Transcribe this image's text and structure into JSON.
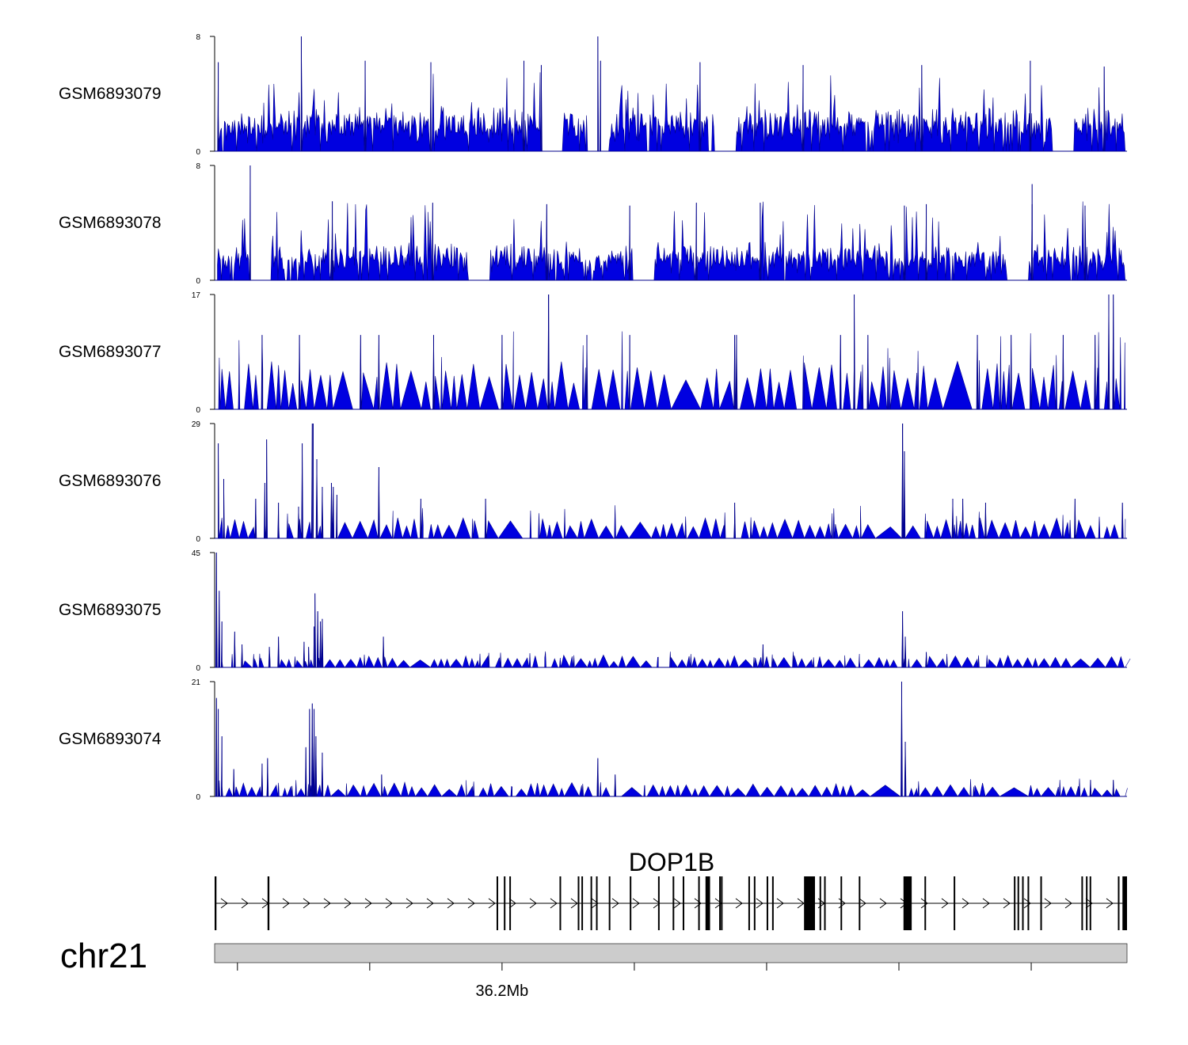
{
  "chart_data": {
    "type": "area",
    "title": "",
    "colors": {
      "signal": "#0000e0",
      "signal_edge": "#00008a",
      "ideogram": "#cccccc",
      "text": "#000000"
    },
    "tracks": [
      {
        "name": "GSM6893079",
        "ymax": 8,
        "ymin": 0,
        "ytick_top": "8",
        "ytick_bottom": "0",
        "baseline": 1.5,
        "noise": 1.2,
        "peak_rate": 0.045,
        "peak_height": 5,
        "seed": 11,
        "peaks": [
          [
            0.004,
            6.2
          ],
          [
            0.095,
            8.0
          ],
          [
            0.165,
            6.3
          ],
          [
            0.237,
            6.2
          ],
          [
            0.339,
            6.3
          ],
          [
            0.358,
            6.0
          ],
          [
            0.42,
            8.0
          ],
          [
            0.423,
            6.3
          ],
          [
            0.532,
            6.2
          ],
          [
            0.645,
            6.0
          ],
          [
            0.775,
            6.0
          ],
          [
            0.894,
            6.3
          ],
          [
            0.975,
            5.9
          ]
        ],
        "valleys": [
          0.37,
          0.42,
          0.56,
          0.93
        ]
      },
      {
        "name": "GSM6893078",
        "ymax": 8,
        "ymin": 0,
        "ytick_top": "8",
        "ytick_bottom": "0",
        "baseline": 1.2,
        "noise": 1.2,
        "peak_rate": 0.045,
        "peak_height": 5,
        "seed": 23,
        "peaks": [
          [
            0.039,
            8.0
          ],
          [
            0.129,
            5.5
          ],
          [
            0.239,
            5.4
          ],
          [
            0.364,
            5.3
          ],
          [
            0.455,
            5.2
          ],
          [
            0.528,
            5.4
          ],
          [
            0.598,
            5.4
          ],
          [
            0.756,
            5.2
          ],
          [
            0.78,
            5.3
          ],
          [
            0.896,
            5.3
          ],
          [
            0.896,
            6.7
          ],
          [
            0.954,
            5.2
          ]
        ],
        "valleys": [
          0.05,
          0.29,
          0.47,
          0.88
        ]
      },
      {
        "name": "GSM6893077",
        "ymax": 17,
        "ymin": 0,
        "ytick_top": "17",
        "ytick_bottom": "0",
        "baseline": 0,
        "noise": 0,
        "tri_height": 5.5,
        "seed": 37,
        "peaks": [
          [
            0.052,
            11
          ],
          [
            0.093,
            11
          ],
          [
            0.16,
            11
          ],
          [
            0.18,
            11
          ],
          [
            0.24,
            11
          ],
          [
            0.315,
            11
          ],
          [
            0.366,
            17
          ],
          [
            0.408,
            11
          ],
          [
            0.455,
            11
          ],
          [
            0.572,
            11
          ],
          [
            0.686,
            11
          ],
          [
            0.716,
            11
          ],
          [
            0.836,
            11
          ],
          [
            0.873,
            11
          ],
          [
            0.93,
            11
          ],
          [
            0.965,
            11
          ],
          [
            0.98,
            17
          ]
        ],
        "bigpeaks": [
          [
            0.366,
            17
          ],
          [
            0.701,
            17
          ],
          [
            0.985,
            17
          ],
          [
            0.57,
            11
          ]
        ],
        "valleys": [
          0.14,
          0.21,
          0.29,
          0.5,
          0.56,
          0.81
        ]
      },
      {
        "name": "GSM6893076",
        "ymax": 29,
        "ymin": 0,
        "ytick_top": "29",
        "ytick_bottom": "0",
        "baseline": 0,
        "noise": 0,
        "tri_height": 4,
        "seed": 41,
        "peaks": [
          [
            0.004,
            24
          ],
          [
            0.01,
            15
          ],
          [
            0.045,
            10
          ],
          [
            0.055,
            14
          ],
          [
            0.057,
            25
          ],
          [
            0.07,
            9
          ],
          [
            0.092,
            8
          ],
          [
            0.096,
            24
          ],
          [
            0.108,
            29
          ],
          [
            0.112,
            20
          ],
          [
            0.118,
            13
          ],
          [
            0.128,
            14
          ],
          [
            0.13,
            13
          ],
          [
            0.134,
            11
          ],
          [
            0.18,
            18
          ],
          [
            0.226,
            10
          ],
          [
            0.297,
            10
          ],
          [
            0.57,
            9
          ],
          [
            0.754,
            29
          ],
          [
            0.756,
            22
          ],
          [
            0.809,
            10
          ],
          [
            0.82,
            10
          ],
          [
            0.845,
            9
          ],
          [
            0.943,
            10
          ]
        ],
        "bigpeaks": [
          [
            0.107,
            29
          ],
          [
            0.754,
            29
          ],
          [
            0.995,
            9
          ]
        ],
        "valleys": [
          0.3,
          0.46,
          0.73
        ]
      },
      {
        "name": "GSM6893075",
        "ymax": 45,
        "ymin": 0,
        "ytick_top": "45",
        "ytick_bottom": "0",
        "baseline": 1,
        "noise": 1,
        "tri_height": 3,
        "seed": 53,
        "peaks": [
          [
            0.002,
            45
          ],
          [
            0.005,
            30
          ],
          [
            0.008,
            18
          ],
          [
            0.022,
            14
          ],
          [
            0.03,
            9
          ],
          [
            0.06,
            8
          ],
          [
            0.07,
            12
          ],
          [
            0.098,
            10
          ],
          [
            0.103,
            8
          ],
          [
            0.109,
            16
          ],
          [
            0.11,
            29
          ],
          [
            0.113,
            22
          ],
          [
            0.116,
            18
          ],
          [
            0.118,
            19
          ],
          [
            0.185,
            12
          ],
          [
            0.601,
            9
          ],
          [
            0.754,
            22
          ],
          [
            0.757,
            12
          ],
          [
            0.78,
            6
          ]
        ],
        "valleys": [
          0.22,
          0.94
        ]
      },
      {
        "name": "GSM6893074",
        "ymax": 21,
        "ymin": 0,
        "ytick_top": "21",
        "ytick_bottom": "0",
        "baseline": 0.6,
        "noise": 0.8,
        "tri_height": 1.6,
        "seed": 67,
        "peaks": [
          [
            0.002,
            18
          ],
          [
            0.004,
            16
          ],
          [
            0.008,
            11
          ],
          [
            0.021,
            5
          ],
          [
            0.052,
            6
          ],
          [
            0.058,
            7
          ],
          [
            0.1,
            9
          ],
          [
            0.104,
            16
          ],
          [
            0.107,
            17
          ],
          [
            0.109,
            16
          ],
          [
            0.111,
            11
          ],
          [
            0.118,
            8
          ],
          [
            0.183,
            4
          ],
          [
            0.42,
            7
          ],
          [
            0.439,
            4
          ],
          [
            0.753,
            21
          ],
          [
            0.757,
            10
          ],
          [
            0.96,
            3
          ],
          [
            0.985,
            3
          ]
        ],
        "valleys": [
          0.45,
          0.72,
          0.86
        ]
      }
    ],
    "gene": {
      "name": "DOP1B",
      "strand": "+",
      "exons": [
        [
          0.0,
          0.002,
          "thin"
        ],
        [
          0.058,
          0.06,
          "thin"
        ],
        [
          0.309,
          0.31,
          "thin"
        ],
        [
          0.317,
          0.318,
          "thin"
        ],
        [
          0.323,
          0.324,
          "thin"
        ],
        [
          0.378,
          0.379,
          "thin"
        ],
        [
          0.398,
          0.399,
          "thin"
        ],
        [
          0.402,
          0.403,
          "thin"
        ],
        [
          0.412,
          0.413,
          "thin"
        ],
        [
          0.418,
          0.419,
          "thin"
        ],
        [
          0.432,
          0.433,
          "thin"
        ],
        [
          0.455,
          0.456,
          "thin"
        ],
        [
          0.486,
          0.487,
          "thin"
        ],
        [
          0.502,
          0.503,
          "thin"
        ],
        [
          0.513,
          0.514,
          "thin"
        ],
        [
          0.53,
          0.531,
          "thin"
        ],
        [
          0.538,
          0.543,
          "thick"
        ],
        [
          0.553,
          0.554,
          "thin"
        ],
        [
          0.555,
          0.556,
          "thin"
        ],
        [
          0.585,
          0.586,
          "thin"
        ],
        [
          0.591,
          0.592,
          "thin"
        ],
        [
          0.605,
          0.606,
          "thin"
        ],
        [
          0.611,
          0.612,
          "thin"
        ],
        [
          0.646,
          0.658,
          "thick"
        ],
        [
          0.663,
          0.664,
          "thin"
        ],
        [
          0.668,
          0.669,
          "thin"
        ],
        [
          0.686,
          0.687,
          "thin"
        ],
        [
          0.706,
          0.707,
          "thin"
        ],
        [
          0.755,
          0.764,
          "thick"
        ],
        [
          0.778,
          0.779,
          "thin"
        ],
        [
          0.81,
          0.811,
          "thin"
        ],
        [
          0.876,
          0.877,
          "thin"
        ],
        [
          0.88,
          0.881,
          "thin"
        ],
        [
          0.885,
          0.886,
          "thin"
        ],
        [
          0.891,
          0.892,
          "thin"
        ],
        [
          0.905,
          0.906,
          "thin"
        ],
        [
          0.95,
          0.951,
          "thin"
        ],
        [
          0.955,
          0.956,
          "thin"
        ],
        [
          0.959,
          0.96,
          "thin"
        ],
        [
          0.99,
          0.991,
          "thin"
        ],
        [
          0.995,
          1.0,
          "thick"
        ]
      ]
    },
    "ideogram": {
      "chromosome": "chr21",
      "tick_positions": [
        0.025,
        0.17,
        0.315,
        0.46,
        0.605,
        0.75,
        0.895
      ],
      "tick_labels": [
        {
          "pos": 0.315,
          "text": "36.2Mb"
        }
      ]
    }
  }
}
